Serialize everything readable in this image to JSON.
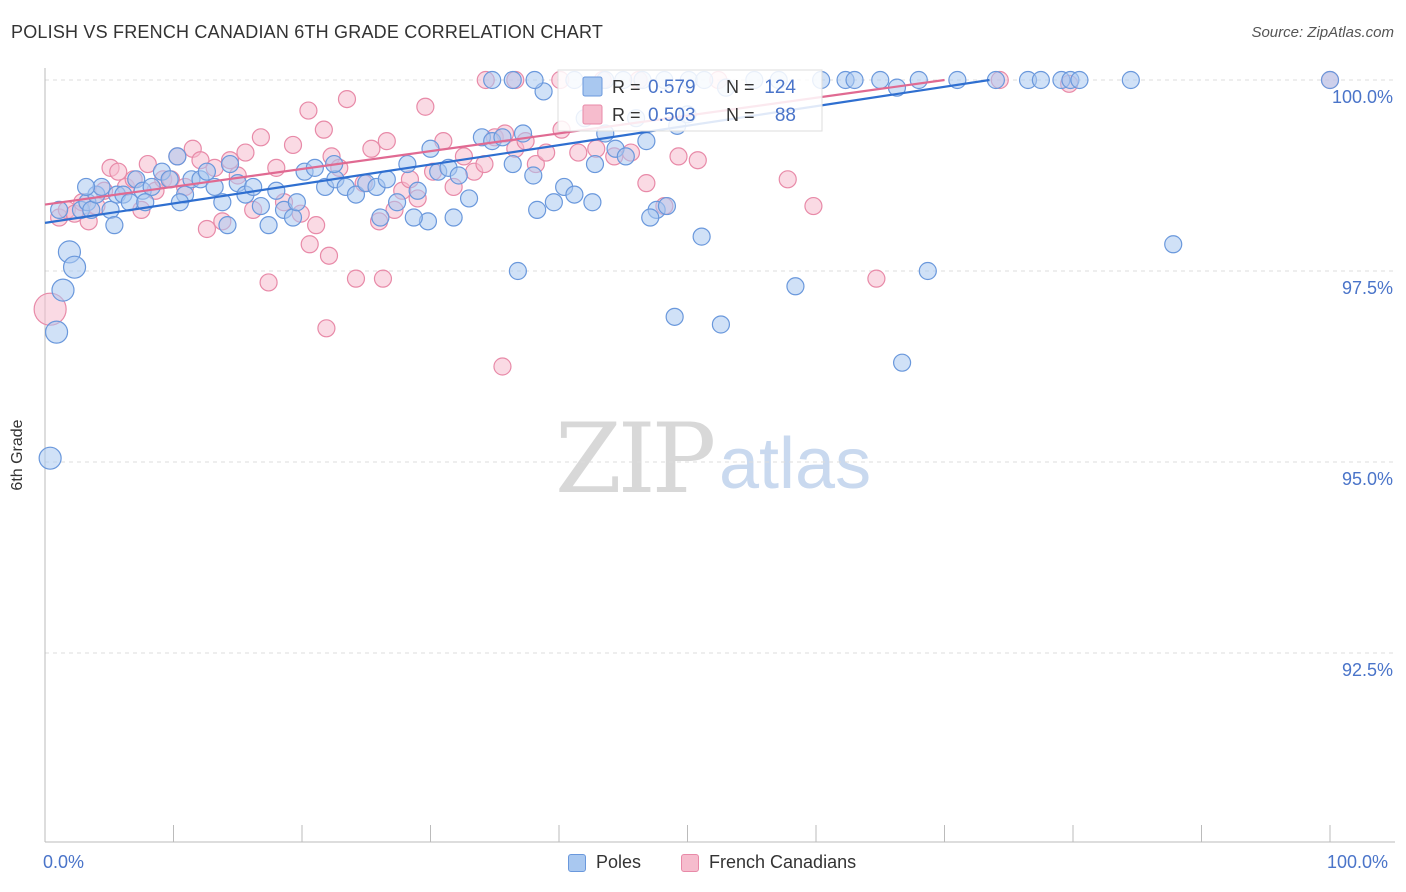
{
  "title": "POLISH VS FRENCH CANADIAN 6TH GRADE CORRELATION CHART",
  "source": "Source: ZipAtlas.com",
  "watermark": {
    "zip": "ZIP",
    "atlas": "atlas"
  },
  "colors": {
    "blue_fill": "#a9c8f0",
    "blue_stroke": "#6a98dc",
    "blue_line": "#2f6fd0",
    "pink_fill": "#f6bccd",
    "pink_stroke": "#e88aa8",
    "pink_line": "#e06a92",
    "axis_text": "#4a74c9",
    "grid": "#dddddd"
  },
  "legend": {
    "rows": [
      {
        "r_label": "R =",
        "r_value": "0.579",
        "n_label": "N =",
        "n_value": "124",
        "series": "Poles"
      },
      {
        "r_label": "R =",
        "r_value": "0.503",
        "n_label": "N =",
        "n_value": "88",
        "series": "French Canadians"
      }
    ]
  },
  "chart_data": {
    "type": "scatter",
    "title": "POLISH VS FRENCH CANADIAN 6TH GRADE CORRELATION CHART",
    "xlabel": "",
    "ylabel": "6th Grade",
    "xlim": [
      0,
      100
    ],
    "ylim": [
      90.2,
      100.25
    ],
    "x_tick_labels": [
      "0.0%",
      "100.0%"
    ],
    "y_ticks": [
      100.0,
      97.5,
      95.0,
      92.5
    ],
    "y_tick_labels": [
      "100.0%",
      "97.5%",
      "95.0%",
      "92.5%"
    ],
    "grid": true,
    "legend_position": "bottom",
    "series": [
      {
        "name": "Poles",
        "r": 0.579,
        "n": 124,
        "trend": {
          "x": [
            0,
            73.5
          ],
          "y": [
            98.13,
            100.0
          ]
        },
        "points": [
          [
            0.4,
            95.05
          ],
          [
            0.9,
            96.7
          ],
          [
            1.4,
            97.25
          ],
          [
            1.9,
            97.75
          ],
          [
            2.3,
            97.55
          ],
          [
            2.8,
            98.3
          ],
          [
            3.3,
            98.4
          ],
          [
            3.6,
            98.3
          ],
          [
            4.0,
            98.5
          ],
          [
            4.4,
            98.6
          ],
          [
            5.1,
            98.3
          ],
          [
            5.6,
            98.5
          ],
          [
            6.1,
            98.5
          ],
          [
            6.6,
            98.4
          ],
          [
            7.1,
            98.7
          ],
          [
            7.6,
            98.55
          ],
          [
            8.3,
            98.6
          ],
          [
            9.1,
            98.8
          ],
          [
            9.7,
            98.7
          ],
          [
            10.3,
            99.0
          ],
          [
            10.9,
            98.5
          ],
          [
            11.4,
            98.7
          ],
          [
            12.1,
            98.7
          ],
          [
            12.6,
            98.8
          ],
          [
            13.2,
            98.6
          ],
          [
            13.8,
            98.4
          ],
          [
            14.4,
            98.9
          ],
          [
            15.0,
            98.65
          ],
          [
            15.6,
            98.5
          ],
          [
            16.2,
            98.6
          ],
          [
            16.8,
            98.35
          ],
          [
            17.4,
            98.1
          ],
          [
            18.0,
            98.55
          ],
          [
            18.6,
            98.3
          ],
          [
            19.3,
            98.2
          ],
          [
            20.2,
            98.8
          ],
          [
            21.0,
            98.85
          ],
          [
            21.8,
            98.6
          ],
          [
            22.6,
            98.7
          ],
          [
            23.4,
            98.6
          ],
          [
            24.2,
            98.5
          ],
          [
            25.0,
            98.65
          ],
          [
            25.8,
            98.6
          ],
          [
            26.6,
            98.7
          ],
          [
            27.4,
            98.4
          ],
          [
            28.2,
            98.9
          ],
          [
            29.0,
            98.55
          ],
          [
            29.8,
            98.15
          ],
          [
            30.6,
            98.8
          ],
          [
            31.4,
            98.85
          ],
          [
            32.2,
            98.75
          ],
          [
            33.0,
            98.45
          ],
          [
            34.0,
            99.25
          ],
          [
            34.8,
            99.2
          ],
          [
            35.6,
            99.25
          ],
          [
            36.4,
            98.9
          ],
          [
            37.2,
            99.3
          ],
          [
            38.0,
            98.75
          ],
          [
            38.8,
            99.85
          ],
          [
            39.6,
            98.4
          ],
          [
            40.4,
            98.6
          ],
          [
            41.2,
            98.5
          ],
          [
            42.0,
            99.5
          ],
          [
            42.8,
            98.9
          ],
          [
            43.6,
            99.3
          ],
          [
            44.4,
            99.1
          ],
          [
            45.2,
            99.0
          ],
          [
            46.0,
            99.5
          ],
          [
            46.8,
            99.2
          ],
          [
            47.6,
            98.3
          ],
          [
            48.4,
            98.35
          ],
          [
            49.2,
            99.4
          ],
          [
            50.0,
            99.55
          ],
          [
            3.2,
            98.6
          ],
          [
            1.1,
            98.3
          ],
          [
            5.4,
            98.1
          ],
          [
            7.8,
            98.4
          ],
          [
            10.5,
            98.4
          ],
          [
            14.2,
            98.1
          ],
          [
            19.6,
            98.4
          ],
          [
            26.1,
            98.2
          ],
          [
            28.7,
            98.2
          ],
          [
            31.8,
            98.2
          ],
          [
            36.8,
            97.5
          ],
          [
            38.3,
            98.3
          ],
          [
            42.6,
            98.4
          ],
          [
            47.1,
            98.2
          ],
          [
            49.0,
            96.9
          ],
          [
            51.1,
            97.95
          ],
          [
            52.6,
            96.8
          ],
          [
            58.4,
            97.3
          ],
          [
            66.7,
            96.3
          ],
          [
            68.7,
            97.5
          ],
          [
            79.1,
            100.0
          ],
          [
            79.8,
            100.0
          ],
          [
            80.5,
            100.0
          ],
          [
            87.8,
            97.85
          ],
          [
            66.3,
            99.9
          ],
          [
            34.8,
            100.0
          ],
          [
            36.4,
            100.0
          ],
          [
            38.1,
            100.0
          ],
          [
            41.2,
            100.0
          ],
          [
            43.6,
            100.0
          ],
          [
            45.0,
            100.0
          ],
          [
            46.5,
            100.0
          ],
          [
            48.2,
            100.0
          ],
          [
            50.1,
            100.0
          ],
          [
            51.3,
            100.0
          ],
          [
            53.0,
            99.9
          ],
          [
            55.2,
            100.0
          ],
          [
            57.1,
            100.0
          ],
          [
            60.4,
            100.0
          ],
          [
            62.3,
            100.0
          ],
          [
            63.0,
            100.0
          ],
          [
            65.0,
            100.0
          ],
          [
            68.0,
            100.0
          ],
          [
            71.0,
            100.0
          ],
          [
            74.0,
            100.0
          ],
          [
            76.5,
            100.0
          ],
          [
            77.5,
            100.0
          ],
          [
            84.5,
            100.0
          ],
          [
            100.0,
            100.0
          ],
          [
            30.0,
            99.1
          ],
          [
            22.5,
            98.9
          ]
        ]
      },
      {
        "name": "French Canadians",
        "r": 0.503,
        "n": 88,
        "trend": {
          "x": [
            0,
            70.0
          ],
          "y": [
            98.37,
            100.0
          ]
        },
        "points": [
          [
            0.4,
            97.0
          ],
          [
            1.1,
            98.2
          ],
          [
            1.7,
            98.3
          ],
          [
            2.3,
            98.25
          ],
          [
            2.9,
            98.4
          ],
          [
            3.4,
            98.15
          ],
          [
            4.0,
            98.35
          ],
          [
            4.6,
            98.55
          ],
          [
            5.1,
            98.85
          ],
          [
            5.7,
            98.8
          ],
          [
            6.3,
            98.6
          ],
          [
            6.9,
            98.7
          ],
          [
            7.5,
            98.3
          ],
          [
            8.0,
            98.9
          ],
          [
            8.6,
            98.55
          ],
          [
            9.2,
            98.7
          ],
          [
            9.8,
            98.7
          ],
          [
            10.3,
            99.0
          ],
          [
            10.9,
            98.6
          ],
          [
            11.5,
            99.1
          ],
          [
            12.1,
            98.95
          ],
          [
            12.6,
            98.05
          ],
          [
            13.2,
            98.85
          ],
          [
            13.8,
            98.15
          ],
          [
            14.4,
            98.95
          ],
          [
            15.0,
            98.75
          ],
          [
            15.6,
            99.05
          ],
          [
            16.2,
            98.3
          ],
          [
            16.8,
            99.25
          ],
          [
            17.4,
            97.35
          ],
          [
            18.0,
            98.85
          ],
          [
            18.6,
            98.4
          ],
          [
            19.3,
            99.15
          ],
          [
            19.9,
            98.25
          ],
          [
            20.5,
            99.6
          ],
          [
            21.1,
            98.1
          ],
          [
            21.7,
            99.35
          ],
          [
            22.3,
            99.0
          ],
          [
            22.9,
            98.85
          ],
          [
            23.5,
            99.75
          ],
          [
            24.2,
            97.4
          ],
          [
            24.8,
            98.65
          ],
          [
            25.4,
            99.1
          ],
          [
            26.0,
            98.15
          ],
          [
            26.6,
            99.2
          ],
          [
            27.2,
            98.3
          ],
          [
            27.8,
            98.55
          ],
          [
            28.4,
            98.7
          ],
          [
            29.0,
            98.45
          ],
          [
            29.6,
            99.65
          ],
          [
            30.2,
            98.8
          ],
          [
            31.0,
            99.2
          ],
          [
            31.8,
            98.6
          ],
          [
            32.6,
            99.0
          ],
          [
            33.4,
            98.8
          ],
          [
            34.2,
            98.9
          ],
          [
            35.0,
            99.25
          ],
          [
            35.8,
            99.3
          ],
          [
            36.6,
            99.1
          ],
          [
            37.4,
            99.2
          ],
          [
            38.2,
            98.9
          ],
          [
            39.0,
            99.05
          ],
          [
            40.2,
            99.35
          ],
          [
            41.5,
            99.05
          ],
          [
            42.9,
            99.1
          ],
          [
            44.3,
            99.0
          ],
          [
            45.6,
            99.05
          ],
          [
            46.8,
            98.65
          ],
          [
            48.2,
            98.35
          ],
          [
            49.3,
            99.0
          ],
          [
            50.8,
            98.95
          ],
          [
            22.1,
            97.7
          ],
          [
            20.6,
            97.85
          ],
          [
            21.9,
            96.75
          ],
          [
            26.3,
            97.4
          ],
          [
            35.6,
            96.25
          ],
          [
            57.8,
            98.7
          ],
          [
            59.8,
            98.35
          ],
          [
            64.7,
            97.4
          ],
          [
            74.3,
            100.0
          ],
          [
            79.7,
            99.95
          ],
          [
            34.3,
            100.0
          ],
          [
            36.6,
            100.0
          ],
          [
            40.1,
            100.0
          ],
          [
            43.4,
            100.0
          ],
          [
            46.2,
            100.0
          ],
          [
            52.4,
            100.0
          ],
          [
            100.0,
            100.0
          ]
        ]
      }
    ]
  }
}
